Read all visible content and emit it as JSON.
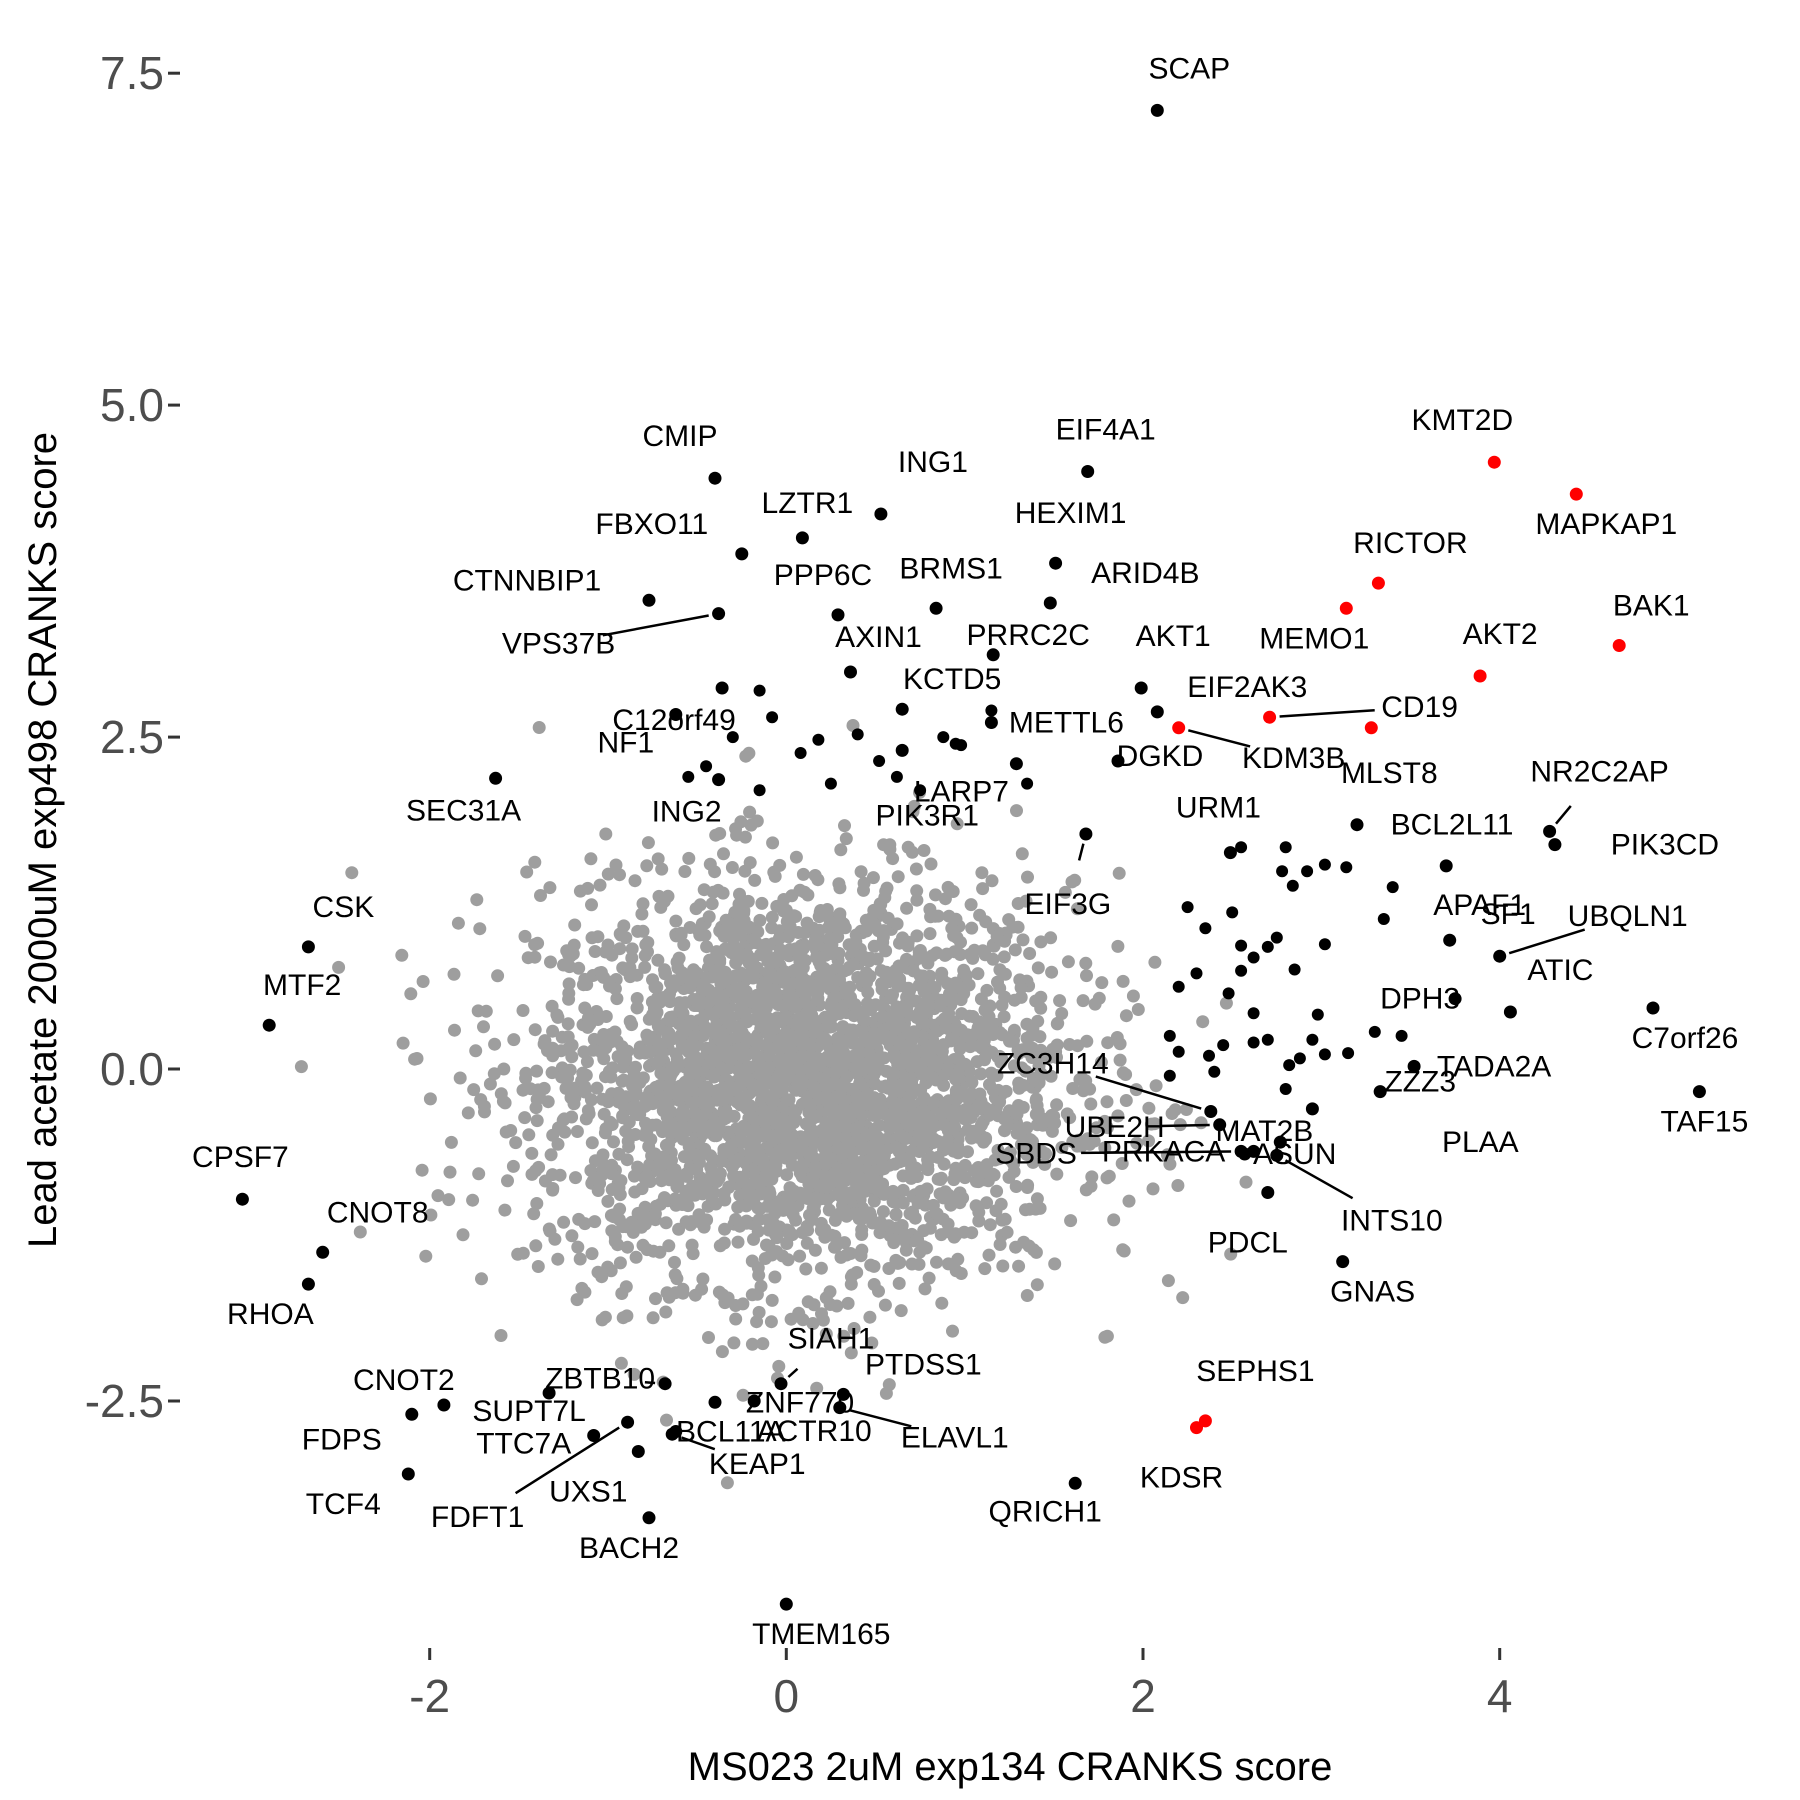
{
  "chart_data": {
    "type": "scatter",
    "title": "",
    "xlabel": "MS023 2uM exp134 CRANKS score",
    "ylabel": "Lead acetate 2000uM exp498 CRANKS score",
    "xlim": [
      -3.4,
      5.6
    ],
    "ylim": [
      -4.3,
      7.75
    ],
    "x_ticks": [
      -2,
      0,
      2,
      4
    ],
    "x_tick_labels": [
      "-2",
      "0",
      "2",
      "4"
    ],
    "y_ticks": [
      -2.5,
      0,
      2.5,
      5,
      7.5
    ],
    "y_tick_labels": [
      "-2.5",
      "0.0",
      "2.5",
      "5.0",
      "7.5"
    ],
    "grid": false,
    "colors": {
      "background": "#ffffff",
      "cloud": "#9e9e9e",
      "labeled": "#000000",
      "highlight": "#ff0000",
      "axis": "#333333"
    },
    "background_cloud": {
      "color": "#9e9e9e",
      "approx_points": 3200,
      "center": [
        0.1,
        -0.1
      ],
      "sd": [
        0.75,
        0.75
      ]
    },
    "labeled_points": [
      {
        "label": "SCAP",
        "x": 2.08,
        "y": 7.22,
        "color": "#000000"
      },
      {
        "label": "CMIP",
        "x": -0.4,
        "y": 4.45,
        "color": "#000000"
      },
      {
        "label": "ING1",
        "x": 0.53,
        "y": 4.18,
        "color": "#000000"
      },
      {
        "label": "EIF4A1",
        "x": 1.69,
        "y": 4.5,
        "color": "#000000"
      },
      {
        "label": "KMT2D",
        "x": 3.97,
        "y": 4.57,
        "color": "#ff0000"
      },
      {
        "label": "MAPKAP1",
        "x": 4.43,
        "y": 4.33,
        "color": "#ff0000"
      },
      {
        "label": "FBXO11",
        "x": -0.25,
        "y": 3.88,
        "color": "#000000"
      },
      {
        "label": "LZTR1",
        "x": 0.09,
        "y": 4.0,
        "color": "#000000"
      },
      {
        "label": "HEXIM1",
        "x": 1.51,
        "y": 3.81,
        "color": "#000000"
      },
      {
        "label": "RICTOR",
        "x": 3.32,
        "y": 3.66,
        "color": "#ff0000"
      },
      {
        "label": "CTNNBIP1",
        "x": -0.77,
        "y": 3.53,
        "color": "#000000"
      },
      {
        "label": "PPP6C",
        "x": 0.29,
        "y": 3.42,
        "color": "#000000"
      },
      {
        "label": "BRMS1",
        "x": 0.84,
        "y": 3.47,
        "color": "#000000"
      },
      {
        "label": "ARID4B",
        "x": 1.48,
        "y": 3.51,
        "color": "#000000"
      },
      {
        "label": "MEMO1",
        "x": 3.14,
        "y": 3.47,
        "color": "#ff0000"
      },
      {
        "label": "BAK1",
        "x": 4.67,
        "y": 3.19,
        "color": "#ff0000"
      },
      {
        "label": "VPS37B",
        "x": -0.38,
        "y": 3.43,
        "color": "#000000"
      },
      {
        "label": "C12orf49",
        "x": -0.36,
        "y": 2.87,
        "color": "#000000"
      },
      {
        "label": "AXIN1",
        "x": 0.36,
        "y": 2.99,
        "color": "#000000"
      },
      {
        "label": "PRRC2C",
        "x": 1.16,
        "y": 3.12,
        "color": "#000000"
      },
      {
        "label": "AKT1",
        "x": 1.99,
        "y": 2.87,
        "color": "#000000"
      },
      {
        "label": "AKT2",
        "x": 3.89,
        "y": 2.96,
        "color": "#ff0000"
      },
      {
        "label": "NF1",
        "x": -0.62,
        "y": 2.67,
        "color": "#000000"
      },
      {
        "label": "KCTD5",
        "x": 0.65,
        "y": 2.71,
        "color": "#000000"
      },
      {
        "label": "METTL6",
        "x": 1.15,
        "y": 2.61,
        "color": "#000000"
      },
      {
        "label": "EIF2AK3",
        "x": 2.08,
        "y": 2.69,
        "color": "#000000"
      },
      {
        "label": "CD19",
        "x": 2.71,
        "y": 2.65,
        "color": "#ff0000"
      },
      {
        "label": "KDM3B",
        "x": 2.2,
        "y": 2.57,
        "color": "#ff0000"
      },
      {
        "label": "MLST8",
        "x": 3.28,
        "y": 2.57,
        "color": "#ff0000"
      },
      {
        "label": "NR2C2AP",
        "x": 4.28,
        "y": 1.79,
        "color": "#000000"
      },
      {
        "label": "DGKD",
        "x": 1.86,
        "y": 2.32,
        "color": "#000000"
      },
      {
        "label": "LARP7",
        "x": 1.29,
        "y": 2.3,
        "color": "#000000"
      },
      {
        "label": "SEC31A",
        "x": -1.63,
        "y": 2.19,
        "color": "#000000"
      },
      {
        "label": "ING2",
        "x": -0.38,
        "y": 2.18,
        "color": "#000000"
      },
      {
        "label": "PIK3R1",
        "x": 0.65,
        "y": 2.4,
        "color": "#000000"
      },
      {
        "label": "URM1",
        "x": 2.49,
        "y": 1.63,
        "color": "#000000"
      },
      {
        "label": "BCL2L11",
        "x": 3.2,
        "y": 1.84,
        "color": "#000000"
      },
      {
        "label": "PIK3CD",
        "x": 4.31,
        "y": 1.69,
        "color": "#000000"
      },
      {
        "label": "EIF3G",
        "x": 1.68,
        "y": 1.77,
        "color": "#000000"
      },
      {
        "label": "SF1",
        "x": 3.7,
        "y": 1.53,
        "color": "#000000"
      },
      {
        "label": "CSK",
        "x": -2.68,
        "y": 0.92,
        "color": "#000000"
      },
      {
        "label": "APAF1",
        "x": 3.72,
        "y": 0.97,
        "color": "#000000"
      },
      {
        "label": "UBQLN1",
        "x": 4.0,
        "y": 0.85,
        "color": "#000000"
      },
      {
        "label": "ATIC",
        "x": 4.06,
        "y": 0.43,
        "color": "#000000"
      },
      {
        "label": "MTF2",
        "x": -2.9,
        "y": 0.33,
        "color": "#000000"
      },
      {
        "label": "DPH3",
        "x": 3.75,
        "y": 0.53,
        "color": "#000000"
      },
      {
        "label": "C7orf26",
        "x": 4.86,
        "y": 0.46,
        "color": "#000000"
      },
      {
        "label": "TADA2A",
        "x": 3.52,
        "y": 0.02,
        "color": "#000000"
      },
      {
        "label": "ZC3H14",
        "x": 2.38,
        "y": -0.32,
        "color": "#000000"
      },
      {
        "label": "MAT2B",
        "x": 2.95,
        "y": -0.3,
        "color": "#000000"
      },
      {
        "label": "ZZZ3",
        "x": 3.33,
        "y": -0.17,
        "color": "#000000"
      },
      {
        "label": "TAF15",
        "x": 5.12,
        "y": -0.17,
        "color": "#000000"
      },
      {
        "label": "UBE2H",
        "x": 2.43,
        "y": -0.42,
        "color": "#000000"
      },
      {
        "label": "PLAA",
        "x": 2.77,
        "y": -0.55,
        "color": "#000000"
      },
      {
        "label": "ASUN",
        "x": 2.57,
        "y": -0.64,
        "color": "#000000"
      },
      {
        "label": "CPSF7",
        "x": -3.05,
        "y": -0.98,
        "color": "#000000"
      },
      {
        "label": "SBDS",
        "x": 2.55,
        "y": -0.62,
        "color": "#000000"
      },
      {
        "label": "PRKACA",
        "x": 2.62,
        "y": -0.62,
        "color": "#000000"
      },
      {
        "label": "INTS10",
        "x": 2.75,
        "y": -0.65,
        "color": "#000000"
      },
      {
        "label": "CNOT8",
        "x": -2.6,
        "y": -1.38,
        "color": "#000000"
      },
      {
        "label": "PDCL",
        "x": 2.7,
        "y": -0.93,
        "color": "#000000"
      },
      {
        "label": "RHOA",
        "x": -2.68,
        "y": -1.62,
        "color": "#000000"
      },
      {
        "label": "GNAS",
        "x": 3.12,
        "y": -1.45,
        "color": "#000000"
      },
      {
        "label": "ZBTB10",
        "x": -0.68,
        "y": -2.37,
        "color": "#000000"
      },
      {
        "label": "SIAH1",
        "x": -0.03,
        "y": -2.37,
        "color": "#000000"
      },
      {
        "label": "ZNF770",
        "x": -0.4,
        "y": -2.51,
        "color": "#000000"
      },
      {
        "label": "SUPT7L",
        "x": -1.33,
        "y": -2.44,
        "color": "#000000"
      },
      {
        "label": "PTDSS1",
        "x": 0.32,
        "y": -2.45,
        "color": "#000000"
      },
      {
        "label": "CNOT2",
        "x": -1.92,
        "y": -2.53,
        "color": "#000000"
      },
      {
        "label": "SEPHS1",
        "x": 2.35,
        "y": -2.65,
        "color": "#ff0000"
      },
      {
        "label": "ELAVL1",
        "x": 0.3,
        "y": -2.55,
        "color": "#000000"
      },
      {
        "label": "TTC7A",
        "x": -1.08,
        "y": -2.76,
        "color": "#000000"
      },
      {
        "label": "FDPS",
        "x": -2.1,
        "y": -2.6,
        "color": "#000000"
      },
      {
        "label": "ACTR10",
        "x": -0.18,
        "y": -2.5,
        "color": "#000000"
      },
      {
        "label": "KDSR",
        "x": 2.3,
        "y": -2.7,
        "color": "#ff0000"
      },
      {
        "label": "TCF4",
        "x": -2.12,
        "y": -3.05,
        "color": "#000000"
      },
      {
        "label": "UXS1",
        "x": -0.83,
        "y": -2.88,
        "color": "#000000"
      },
      {
        "label": "BCL11A",
        "x": -0.62,
        "y": -2.73,
        "color": "#000000"
      },
      {
        "label": "QRICH1",
        "x": 1.62,
        "y": -3.12,
        "color": "#000000"
      },
      {
        "label": "FDFT1",
        "x": -0.89,
        "y": -2.66,
        "color": "#000000"
      },
      {
        "label": "BACH2",
        "x": -0.77,
        "y": -3.38,
        "color": "#000000"
      },
      {
        "label": "KEAP1",
        "x": -0.64,
        "y": -2.75,
        "color": "#000000"
      },
      {
        "label": "TMEM165",
        "x": 0.0,
        "y": -4.03,
        "color": "#000000"
      }
    ],
    "unlabeled_points": [
      [
        0.75,
        2.1
      ],
      [
        0.95,
        2.45
      ],
      [
        0.4,
        2.52
      ],
      [
        -0.15,
        2.85
      ],
      [
        -0.08,
        2.65
      ],
      [
        0.18,
        2.48
      ],
      [
        0.52,
        2.32
      ],
      [
        0.98,
        2.44
      ],
      [
        -0.3,
        2.5
      ],
      [
        -0.45,
        2.28
      ],
      [
        0.08,
        2.38
      ],
      [
        0.62,
        2.2
      ],
      [
        0.88,
        2.5
      ],
      [
        1.15,
        2.7
      ],
      [
        1.35,
        2.15
      ],
      [
        -0.55,
        2.2
      ],
      [
        0.25,
        2.15
      ],
      [
        -0.15,
        2.1
      ],
      [
        2.55,
        1.67
      ],
      [
        2.78,
        1.49
      ],
      [
        2.8,
        1.67
      ],
      [
        2.92,
        1.49
      ],
      [
        2.84,
        1.38
      ],
      [
        3.02,
        1.54
      ],
      [
        3.14,
        1.52
      ],
      [
        3.4,
        1.37
      ],
      [
        3.35,
        1.13
      ],
      [
        2.25,
        1.22
      ],
      [
        2.5,
        1.18
      ],
      [
        2.35,
        1.06
      ],
      [
        2.55,
        0.93
      ],
      [
        2.7,
        0.92
      ],
      [
        2.75,
        0.99
      ],
      [
        2.85,
        0.75
      ],
      [
        3.02,
        0.94
      ],
      [
        2.62,
        0.84
      ],
      [
        2.55,
        0.74
      ],
      [
        2.3,
        0.72
      ],
      [
        2.48,
        0.57
      ],
      [
        2.2,
        0.62
      ],
      [
        2.62,
        0.42
      ],
      [
        2.98,
        0.41
      ],
      [
        3.3,
        0.28
      ],
      [
        2.7,
        0.22
      ],
      [
        2.62,
        0.2
      ],
      [
        2.15,
        0.25
      ],
      [
        2.45,
        0.18
      ],
      [
        2.2,
        0.13
      ],
      [
        2.37,
        0.1
      ],
      [
        2.4,
        -0.02
      ],
      [
        2.88,
        0.08
      ],
      [
        3.02,
        0.11
      ],
      [
        2.82,
        0.03
      ],
      [
        3.15,
        0.12
      ],
      [
        2.95,
        0.22
      ],
      [
        2.15,
        -0.05
      ],
      [
        3.45,
        0.25
      ],
      [
        2.8,
        -0.15
      ]
    ]
  }
}
